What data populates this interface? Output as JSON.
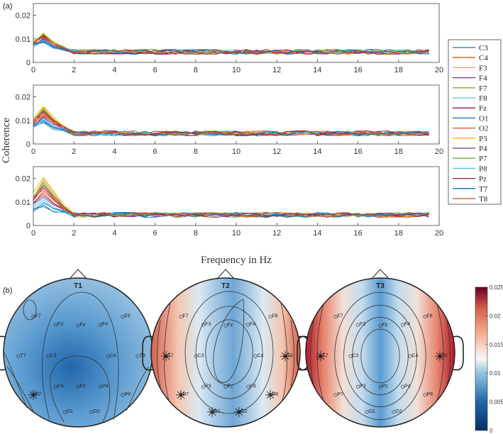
{
  "chart_data": [
    {
      "type": "line",
      "panel": "(a)",
      "ylabel": "Coherence",
      "xlabel": "Frequency in Hz",
      "xlim": [
        0,
        20
      ],
      "ylim": [
        0,
        0.025
      ],
      "xticks": [
        "0",
        "2",
        "4",
        "6",
        "8",
        "10",
        "12",
        "14",
        "16",
        "18",
        "20"
      ],
      "yticks": [
        "0",
        "0.01",
        "0.02"
      ],
      "x": [
        0,
        0.5,
        1,
        1.5,
        2,
        2.5,
        3,
        3.5,
        4,
        4.5,
        5,
        5.5,
        6,
        6.5,
        7,
        7.5,
        8,
        8.5,
        9,
        9.5,
        10,
        10.5,
        11,
        11.5,
        12,
        12.5,
        13,
        13.5,
        14,
        14.5,
        15,
        15.5,
        16,
        16.5,
        17,
        17.5,
        18,
        18.5,
        19,
        19.5
      ],
      "legend": [
        "C3",
        "C4",
        "F3",
        "F4",
        "F7",
        "F8",
        "Fz",
        "O1",
        "O2",
        "P3",
        "P4",
        "P7",
        "P8",
        "Pz",
        "T7",
        "T8"
      ],
      "colors": [
        "#1f77b4",
        "#e8590c",
        "#e6b800",
        "#7b2d8e",
        "#77ac30",
        "#4dbeee",
        "#a2142f",
        "#0072bd",
        "#d95319",
        "#edb120",
        "#7e2f8e",
        "#77ac30",
        "#4dbeee",
        "#a2142f",
        "#0072bd",
        "#d95319"
      ],
      "subplots": [
        {
          "name": "T1",
          "peak": [
            0.0085,
            0.0125
          ],
          "baseline": 0.0045
        },
        {
          "name": "T2",
          "peak": [
            0.009,
            0.016
          ],
          "baseline": 0.0045
        },
        {
          "name": "T3",
          "peak": [
            0.008,
            0.0205
          ],
          "baseline": 0.0045
        }
      ]
    },
    {
      "type": "heatmap",
      "panel": "(b)",
      "maps": [
        {
          "title": "T1",
          "electrodes": [
            "F7",
            "F3",
            "Fz",
            "F4",
            "F8",
            "T7",
            "C3",
            "C4",
            "T8",
            "P7",
            "P3",
            "Pz",
            "P4",
            "P8",
            "O1",
            "O2"
          ]
        },
        {
          "title": "T2",
          "electrodes": [
            "F7",
            "F3",
            "Fz",
            "F4",
            "F8",
            "T7",
            "C3",
            "C4",
            "T8",
            "P7",
            "P3",
            "Pz",
            "P4",
            "P8",
            "O1",
            "O2"
          ]
        },
        {
          "title": "T3",
          "electrodes": [
            "F7",
            "F3",
            "Fz",
            "F4",
            "F8",
            "T7",
            "C3",
            "C4",
            "T8",
            "P7",
            "P3",
            "Pz",
            "P4",
            "P8",
            "O1",
            "O2"
          ]
        }
      ],
      "colorbar": {
        "ticks": [
          "0",
          "0.005",
          "0.01",
          "0.015",
          "0.02",
          "0.025"
        ],
        "range": [
          0,
          0.025
        ]
      }
    }
  ]
}
